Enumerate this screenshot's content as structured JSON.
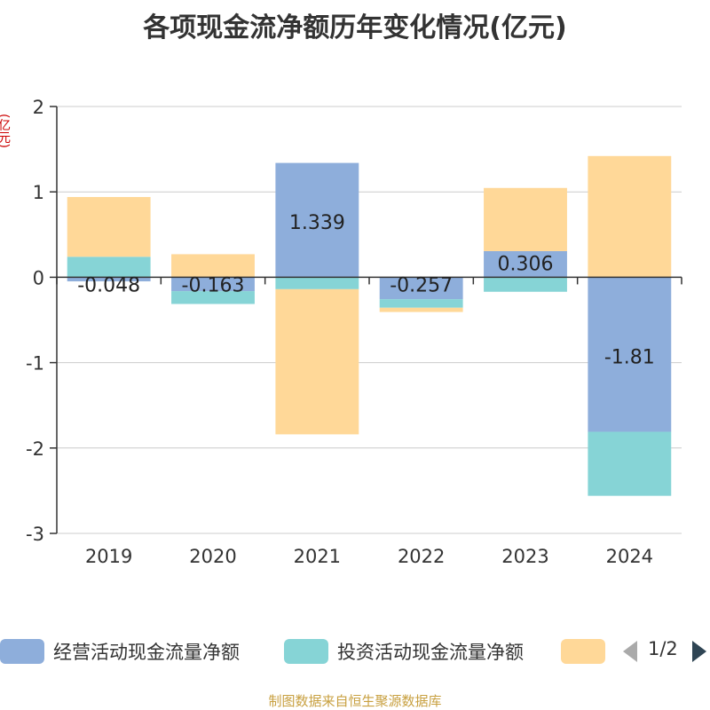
{
  "title": "各项现金流净额历年变化情况(亿元)",
  "unit": "(亿元)",
  "source": "制图数据来自恒生聚源数据库",
  "legend": {
    "items": [
      {
        "label": "经营活动现金流量净额",
        "color": "#8eaedb"
      },
      {
        "label": "投资活动现金流量净额",
        "color": "#86d4d6"
      },
      {
        "label": "",
        "color": "#ffd898"
      }
    ],
    "page": "1/2"
  },
  "chart_data": {
    "type": "bar",
    "stacked": true,
    "categories": [
      "2019",
      "2020",
      "2021",
      "2022",
      "2023",
      "2024"
    ],
    "ylim": [
      -3,
      2
    ],
    "yticks": [
      2,
      1,
      0,
      -1,
      -2,
      -3
    ],
    "grid": true,
    "series": [
      {
        "name": "经营活动现金流量净额",
        "color": "#8eaedb",
        "values": [
          -0.048,
          -0.163,
          1.339,
          -0.257,
          0.306,
          -1.81
        ],
        "labels": [
          "-0.048",
          "-0.163",
          "1.339",
          "-0.257",
          "0.306",
          "-1.81"
        ]
      },
      {
        "name": "投资活动现金流量净额",
        "color": "#86d4d6",
        "values": [
          0.24,
          -0.15,
          -0.14,
          -0.1,
          -0.17,
          -0.75
        ]
      },
      {
        "name": "",
        "color": "#ffd898",
        "values": [
          0.7,
          0.27,
          -1.7,
          -0.05,
          0.74,
          1.42
        ]
      }
    ]
  }
}
